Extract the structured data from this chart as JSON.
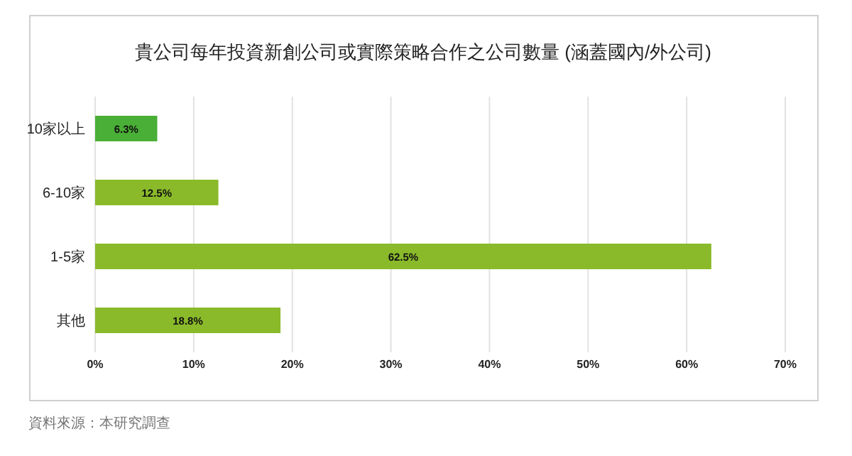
{
  "chart_data": {
    "type": "bar",
    "orientation": "horizontal",
    "title": "貴公司每年投資新創公司或實際策略合作之公司數量 (涵蓋國內/外公司)",
    "categories": [
      "10家以上",
      "6-10家",
      "1-5家",
      "其他"
    ],
    "values": [
      6.3,
      12.5,
      62.5,
      18.8
    ],
    "colors": [
      "#4aaf36",
      "#8aba2a",
      "#8aba2a",
      "#8aba2a"
    ],
    "value_labels": [
      "6.3%",
      "12.5%",
      "62.5%",
      "18.8%"
    ],
    "xlim": [
      0,
      70
    ],
    "xticks": [
      {
        "value": 0,
        "label": "0%"
      },
      {
        "value": 10,
        "label": "10%"
      },
      {
        "value": 20,
        "label": "20%"
      },
      {
        "value": 30,
        "label": "30%"
      },
      {
        "value": 40,
        "label": "40%"
      },
      {
        "value": 50,
        "label": "50%"
      },
      {
        "value": 60,
        "label": "60%"
      },
      {
        "value": 70,
        "label": "70%"
      }
    ],
    "grid": "x",
    "annotations": [
      "資料來源：本研究調查"
    ]
  }
}
